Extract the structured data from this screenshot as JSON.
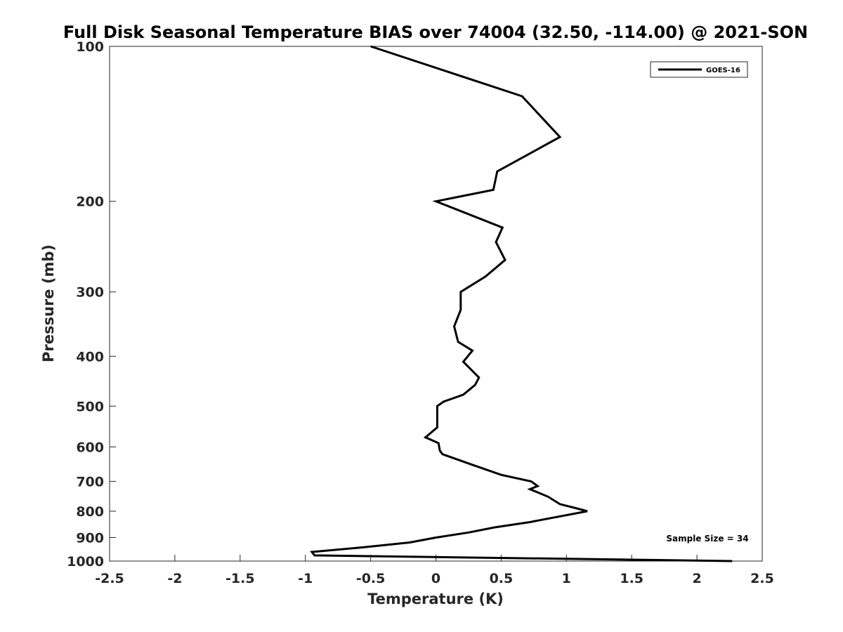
{
  "chart_data": {
    "type": "line",
    "title": "Full Disk Seasonal Temperature BIAS over 74004 (32.50, -114.00) @ 2021-SON",
    "xlabel": "Temperature (K)",
    "ylabel": "Pressure (mb)",
    "xlim": [
      -2.5,
      2.5
    ],
    "ylim": [
      100,
      1000
    ],
    "y_scale": "log",
    "y_reversed": true,
    "x_ticks": [
      -2.5,
      -2,
      -1.5,
      -1,
      -0.5,
      0,
      0.5,
      1,
      1.5,
      2,
      2.5
    ],
    "x_tick_labels": [
      "-2.5",
      "-2",
      "-1.5",
      "-1",
      "-0.5",
      "0",
      "0.5",
      "1",
      "1.5",
      "2",
      "2.5"
    ],
    "y_ticks": [
      100,
      200,
      300,
      400,
      500,
      600,
      700,
      800,
      900,
      1000
    ],
    "y_tick_labels": [
      "100",
      "200",
      "300",
      "400",
      "500",
      "600",
      "700",
      "800",
      "900",
      "1000"
    ],
    "grid": false,
    "legend_position": "top-right",
    "series": [
      {
        "name": "GOES-16",
        "color": "#000000",
        "points": [
          [
            -0.5,
            100
          ],
          [
            0.66,
            125
          ],
          [
            0.95,
            150
          ],
          [
            0.47,
            175
          ],
          [
            0.44,
            190
          ],
          [
            0.0,
            200
          ],
          [
            0.51,
            225
          ],
          [
            0.46,
            240
          ],
          [
            0.53,
            260
          ],
          [
            0.38,
            280
          ],
          [
            0.19,
            300
          ],
          [
            0.19,
            325
          ],
          [
            0.14,
            350
          ],
          [
            0.17,
            375
          ],
          [
            0.28,
            390
          ],
          [
            0.21,
            410
          ],
          [
            0.33,
            440
          ],
          [
            0.3,
            455
          ],
          [
            0.21,
            475
          ],
          [
            0.06,
            490
          ],
          [
            0.01,
            500
          ],
          [
            0.01,
            540
          ],
          [
            0.01,
            550
          ],
          [
            -0.08,
            575
          ],
          [
            0.02,
            590
          ],
          [
            0.03,
            610
          ],
          [
            0.05,
            620
          ],
          [
            0.28,
            650
          ],
          [
            0.5,
            680
          ],
          [
            0.73,
            700
          ],
          [
            0.78,
            715
          ],
          [
            0.72,
            725
          ],
          [
            0.86,
            750
          ],
          [
            0.95,
            775
          ],
          [
            1.08,
            790
          ],
          [
            1.16,
            800
          ],
          [
            0.88,
            825
          ],
          [
            0.72,
            840
          ],
          [
            0.45,
            860
          ],
          [
            0.25,
            880
          ],
          [
            0.0,
            900
          ],
          [
            -0.2,
            920
          ],
          [
            -0.55,
            940
          ],
          [
            -0.95,
            960
          ],
          [
            -0.93,
            975
          ],
          [
            2.27,
            1000
          ]
        ]
      }
    ],
    "annotation": "Sample Size = 34"
  }
}
